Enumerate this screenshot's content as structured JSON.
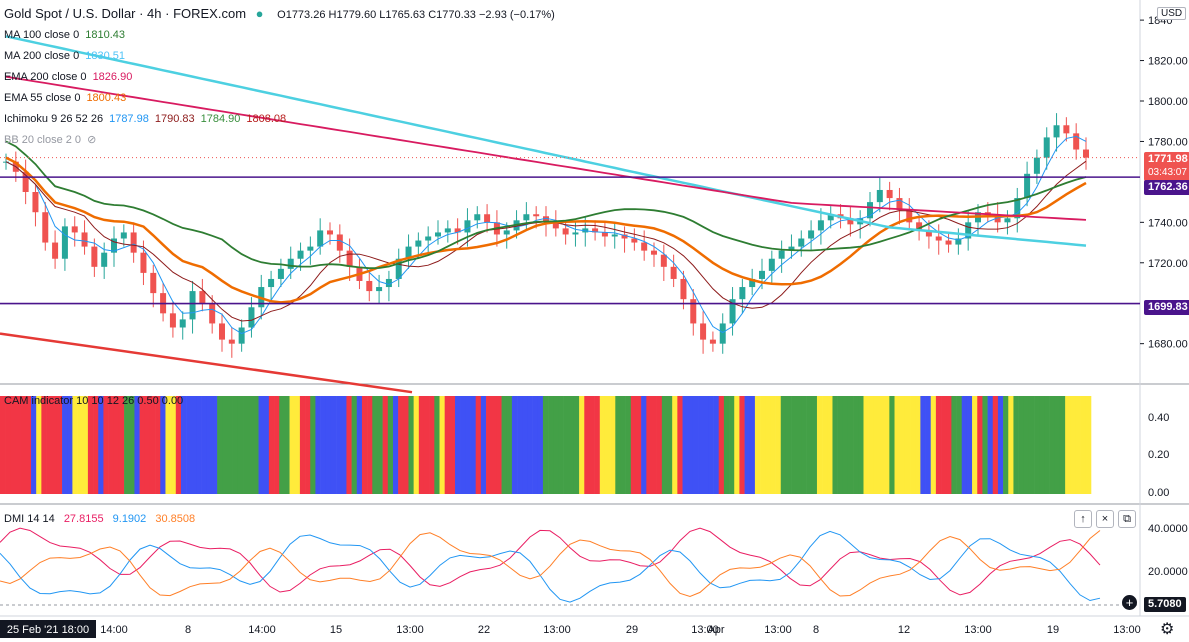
{
  "header": {
    "title": "Gold Spot / U.S. Dollar · 4h · FOREX.com",
    "ohlc": "O1773.26  H1779.60  L1765.63  C1770.33  −2.93 (−0.17%)",
    "currency": "USD"
  },
  "legends": [
    {
      "label": "MA 100 close 0",
      "value": "1810.43",
      "color": "#2e7d32"
    },
    {
      "label": "MA 200 close 0",
      "value": "1830.51",
      "color": "#4fc3f7"
    },
    {
      "label": "EMA 200 close 0",
      "value": "1826.90",
      "color": "#d81b60"
    },
    {
      "label": "EMA 55 close 0",
      "value": "1800.43",
      "color": "#ef6c00"
    },
    {
      "label": "Ichimoku 9 26 52 26",
      "values": [
        "1787.98",
        "1790.83",
        "1784.90",
        "1808.08"
      ],
      "colors": [
        "#2196f3",
        "#8d1b1b",
        "#388e3c",
        "#b71c1c"
      ]
    },
    {
      "label": "BB 20 close 2 0"
    }
  ],
  "price_axis": {
    "ticks": [
      "1840",
      "1820.00",
      "1800.00",
      "1780.00",
      "1740.00",
      "1720.00",
      "1680.00"
    ]
  },
  "price_tags": [
    {
      "label": "1771.98",
      "sub": "03:43:07",
      "color": "#ef5350"
    },
    {
      "label": "1762.36",
      "color": "#4a148c"
    },
    {
      "label": "1699.83",
      "color": "#4a148c"
    }
  ],
  "cam": {
    "title": "CAM indicator  10  10  12  26  0.50  0.00",
    "ticks": [
      "0.40",
      "0.20",
      "0.00"
    ],
    "colors": {
      "red": "#f23645",
      "green": "#43a047",
      "blue": "#3f51f5",
      "yellow": "#ffeb3b"
    }
  },
  "dmi": {
    "title": "DMI 14 14",
    "values": [
      "27.8155",
      "9.1902",
      "30.8508"
    ],
    "colors": [
      "#e91e63",
      "#2196f3",
      "#ff7f27"
    ],
    "ticks": [
      "40.0000",
      "20.0000"
    ],
    "last": "5.7080",
    "buttons": [
      "↑",
      "×",
      "⧉"
    ]
  },
  "time_axis": {
    "labels": [
      "25 Feb '21  18:00",
      "14:00",
      "8",
      "14:00",
      "15",
      "13:00",
      "22",
      "13:00",
      "29",
      "13:00",
      "Apr",
      "13:00",
      "8",
      "12",
      "13:00",
      "19",
      "13:00"
    ]
  },
  "chart_data": {
    "type": "candlestick",
    "title": "Gold Spot / U.S. Dollar · 4h · FOREX.com",
    "ylim": [
      1665,
      1845
    ],
    "horizontal_levels": [
      1762.36,
      1699.83
    ],
    "last_price": 1771.98,
    "close_path": [
      1770,
      1765,
      1755,
      1745,
      1730,
      1722,
      1738,
      1735,
      1728,
      1718,
      1725,
      1732,
      1735,
      1725,
      1715,
      1705,
      1695,
      1688,
      1692,
      1706,
      1700,
      1690,
      1682,
      1680,
      1688,
      1698,
      1708,
      1712,
      1717,
      1722,
      1726,
      1728,
      1736,
      1734,
      1726,
      1718,
      1711,
      1706,
      1708,
      1712,
      1722,
      1728,
      1731,
      1733,
      1735,
      1737,
      1735,
      1741,
      1744,
      1740,
      1734,
      1736,
      1741,
      1744,
      1743,
      1740,
      1737,
      1734,
      1735,
      1737,
      1735,
      1733,
      1734,
      1732,
      1730,
      1726,
      1724,
      1718,
      1712,
      1702,
      1690,
      1682,
      1680,
      1690,
      1702,
      1708,
      1712,
      1716,
      1722,
      1726,
      1728,
      1732,
      1736,
      1741,
      1744,
      1742,
      1739,
      1742,
      1750,
      1756,
      1752,
      1746,
      1740,
      1736,
      1733,
      1731,
      1729,
      1732,
      1740,
      1745,
      1744,
      1740,
      1742,
      1752,
      1764,
      1772,
      1782,
      1788,
      1784,
      1776,
      1772
    ]
  }
}
